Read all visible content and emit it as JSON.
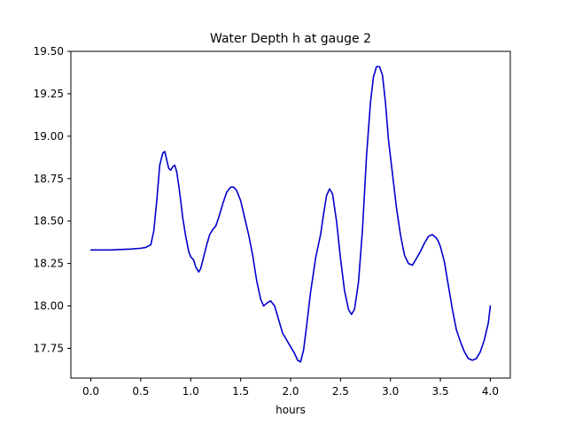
{
  "chart_data": {
    "type": "line",
    "title": "Water Depth h at gauge 2",
    "xlabel": "hours",
    "ylabel": "",
    "xlim": [
      -0.2,
      4.2
    ],
    "ylim": [
      17.575,
      19.5
    ],
    "xticks": [
      0.0,
      0.5,
      1.0,
      1.5,
      2.0,
      2.5,
      3.0,
      3.5,
      4.0
    ],
    "xtick_labels": [
      "0.0",
      "0.5",
      "1.0",
      "1.5",
      "2.0",
      "2.5",
      "3.0",
      "3.5",
      "4.0"
    ],
    "yticks": [
      17.75,
      18.0,
      18.25,
      18.5,
      18.75,
      19.0,
      19.25,
      19.5
    ],
    "ytick_labels": [
      "17.75",
      "18.00",
      "18.25",
      "18.50",
      "18.75",
      "19.00",
      "19.25",
      "19.50"
    ],
    "grid": false,
    "series": [
      {
        "color": "#0000cc",
        "x": [
          0.0,
          0.2,
          0.4,
          0.5,
          0.55,
          0.6,
          0.63,
          0.66,
          0.69,
          0.72,
          0.74,
          0.76,
          0.78,
          0.8,
          0.82,
          0.84,
          0.86,
          0.88,
          0.9,
          0.92,
          0.95,
          0.98,
          1.0,
          1.03,
          1.05,
          1.08,
          1.1,
          1.13,
          1.16,
          1.19,
          1.22,
          1.25,
          1.28,
          1.32,
          1.36,
          1.4,
          1.43,
          1.46,
          1.5,
          1.54,
          1.58,
          1.62,
          1.66,
          1.7,
          1.73,
          1.77,
          1.8,
          1.84,
          1.88,
          1.92,
          1.96,
          2.0,
          2.04,
          2.07,
          2.1,
          2.13,
          2.16,
          2.2,
          2.25,
          2.3,
          2.33,
          2.36,
          2.39,
          2.42,
          2.46,
          2.5,
          2.54,
          2.58,
          2.61,
          2.64,
          2.68,
          2.72,
          2.76,
          2.8,
          2.83,
          2.86,
          2.89,
          2.92,
          2.95,
          2.98,
          3.02,
          3.06,
          3.1,
          3.14,
          3.18,
          3.22,
          3.26,
          3.3,
          3.34,
          3.38,
          3.42,
          3.46,
          3.48,
          3.5,
          3.54,
          3.58,
          3.62,
          3.66,
          3.7,
          3.74,
          3.78,
          3.82,
          3.86,
          3.9,
          3.94,
          3.98,
          4.0
        ],
        "y": [
          18.33,
          18.33,
          18.335,
          18.34,
          18.345,
          18.36,
          18.44,
          18.62,
          18.83,
          18.9,
          18.91,
          18.86,
          18.81,
          18.8,
          18.82,
          18.83,
          18.79,
          18.71,
          18.62,
          18.52,
          18.41,
          18.32,
          18.29,
          18.27,
          18.23,
          18.2,
          18.22,
          18.29,
          18.36,
          18.42,
          18.45,
          18.47,
          18.52,
          18.6,
          18.67,
          18.7,
          18.7,
          18.68,
          18.62,
          18.52,
          18.42,
          18.3,
          18.15,
          18.04,
          18.0,
          18.02,
          18.03,
          18.0,
          17.92,
          17.84,
          17.8,
          17.76,
          17.72,
          17.68,
          17.67,
          17.74,
          17.88,
          18.08,
          18.28,
          18.42,
          18.54,
          18.65,
          18.69,
          18.66,
          18.5,
          18.28,
          18.09,
          17.98,
          17.95,
          17.98,
          18.14,
          18.45,
          18.88,
          19.2,
          19.35,
          19.41,
          19.41,
          19.36,
          19.2,
          18.98,
          18.78,
          18.58,
          18.42,
          18.3,
          18.25,
          18.24,
          18.28,
          18.32,
          18.37,
          18.41,
          18.42,
          18.4,
          18.38,
          18.35,
          18.26,
          18.12,
          17.98,
          17.86,
          17.79,
          17.73,
          17.69,
          17.68,
          17.69,
          17.73,
          17.8,
          17.9,
          18.0
        ]
      }
    ]
  }
}
